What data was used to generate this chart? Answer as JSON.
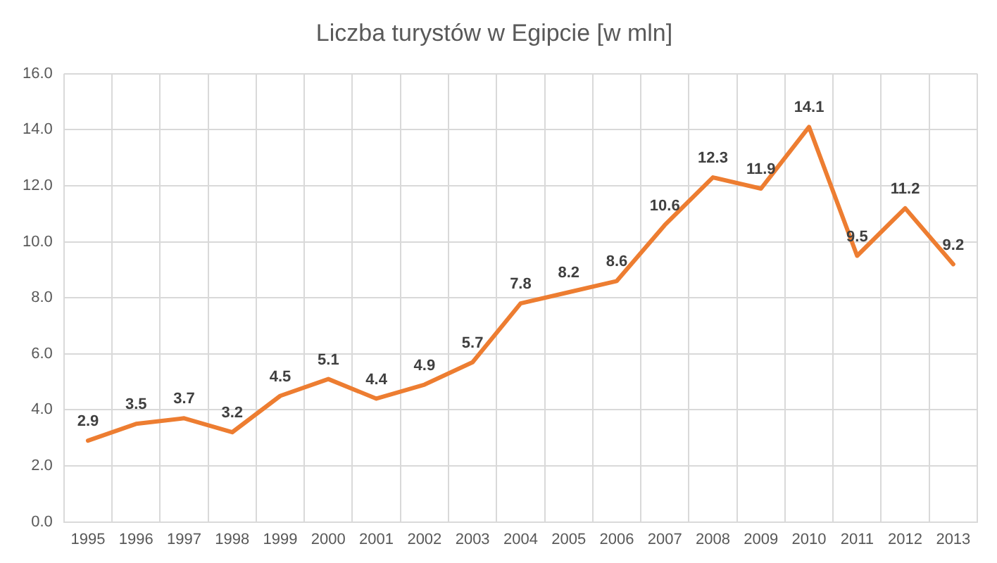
{
  "chart_data": {
    "type": "line",
    "title": "Liczba turystów w Egipcie [w mln]",
    "categories": [
      "1995",
      "1996",
      "1997",
      "1998",
      "1999",
      "2000",
      "2001",
      "2002",
      "2003",
      "2004",
      "2005",
      "2006",
      "2007",
      "2008",
      "2009",
      "2010",
      "2011",
      "2012",
      "2013"
    ],
    "series": [
      {
        "color": "#ed7d31",
        "values": [
          2.9,
          3.5,
          3.7,
          3.2,
          4.5,
          5.1,
          4.4,
          4.9,
          5.7,
          7.8,
          8.2,
          8.6,
          10.6,
          12.3,
          11.9,
          14.1,
          9.5,
          11.2,
          9.2
        ]
      }
    ],
    "ylim": [
      0,
      16
    ],
    "yticks": [
      {
        "value": 0,
        "label": "0.0"
      },
      {
        "value": 2,
        "label": "2.0"
      },
      {
        "value": 4,
        "label": "4.0"
      },
      {
        "value": 6,
        "label": "6.0"
      },
      {
        "value": 8,
        "label": "8.0"
      },
      {
        "value": 10,
        "label": "10.0"
      },
      {
        "value": 12,
        "label": "12.0"
      },
      {
        "value": 14,
        "label": "14.0"
      },
      {
        "value": 16,
        "label": "16.0"
      }
    ],
    "grid": true,
    "legend": false,
    "marker": "none",
    "line_style": "solid",
    "data_labels": true
  }
}
